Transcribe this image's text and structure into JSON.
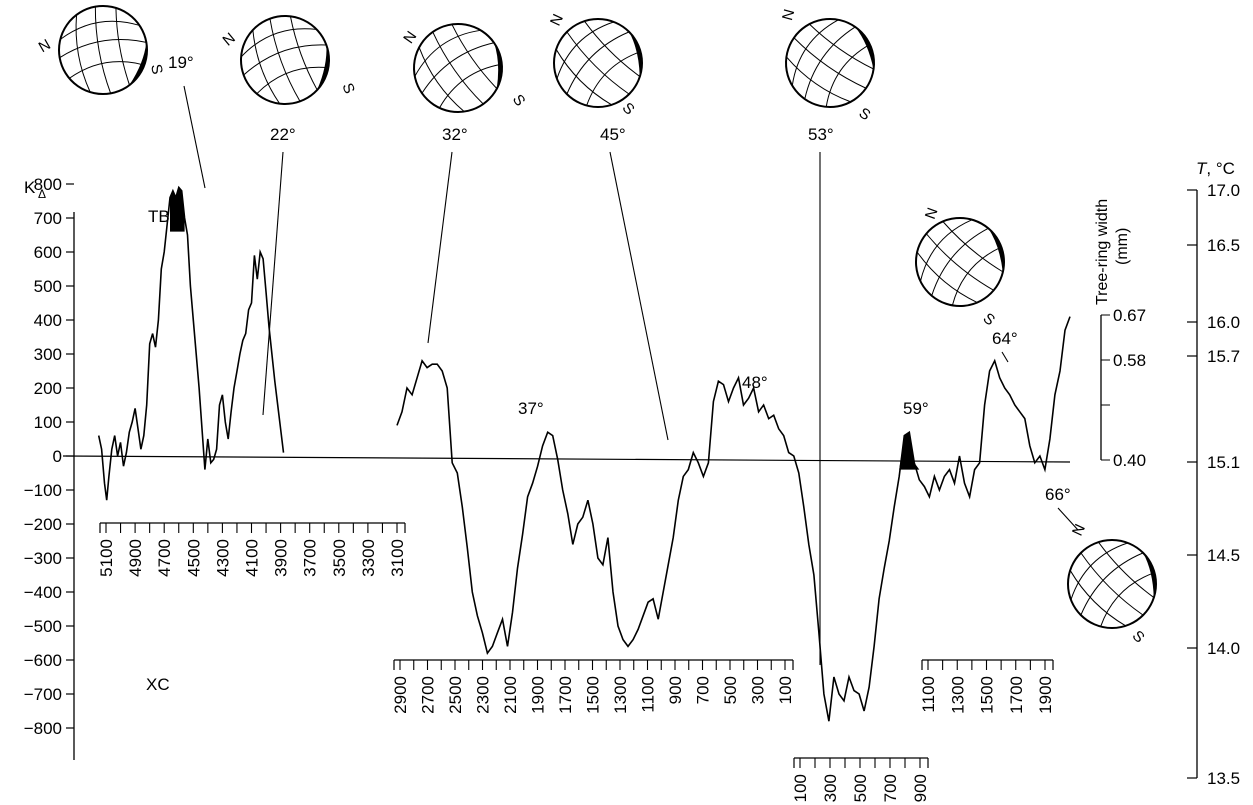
{
  "chart_data": {
    "type": "line",
    "axes": {
      "left": {
        "label_main": "K",
        "label_sub": "Δ",
        "ticks": [
          "800",
          "700",
          "600",
          "500",
          "400",
          "300",
          "200",
          "100",
          "0",
          "−100",
          "−200",
          "−300",
          "−400",
          "−500",
          "−600",
          "−700",
          "−800"
        ],
        "range": [
          -800,
          800
        ]
      },
      "tree_ring": {
        "label_line1": "Tree-ring width",
        "label_line2": "(mm)",
        "ticks": [
          "0.67",
          "0.58",
          "0.40"
        ]
      },
      "temperature": {
        "label_var": "T",
        "label_unit": ", °C",
        "ticks": [
          "17.0",
          "16.5",
          "16.0",
          "15.7",
          "15.1",
          "14.5",
          "14.0",
          "13.5"
        ]
      }
    },
    "region_labels": {
      "upper": "TB",
      "lower": "XC"
    },
    "time_axes": [
      {
        "id": "bc-upper",
        "ticks": [
          "5100",
          "4900",
          "4700",
          "4500",
          "4300",
          "4100",
          "3900",
          "3700",
          "3500",
          "3300",
          "3100"
        ]
      },
      {
        "id": "bc-lower",
        "ticks": [
          "2900",
          "2700",
          "2500",
          "2300",
          "2100",
          "1900",
          "1700",
          "1500",
          "1300",
          "1100",
          "900",
          "700",
          "500",
          "300",
          "100"
        ]
      },
      {
        "id": "ad-early",
        "ticks": [
          "100",
          "300",
          "500",
          "700",
          "900"
        ]
      },
      {
        "id": "ad-late",
        "ticks": [
          "1100",
          "1300",
          "1500",
          "1700",
          "1900"
        ]
      }
    ],
    "series": [
      {
        "values": [
          [
            5150,
            60
          ],
          [
            5130,
            20
          ],
          [
            5110,
            -80
          ],
          [
            5095,
            -130
          ],
          [
            5080,
            -60
          ],
          [
            5060,
            20
          ],
          [
            5040,
            60
          ],
          [
            5020,
            0
          ],
          [
            5000,
            40
          ],
          [
            4980,
            -30
          ],
          [
            4960,
            10
          ],
          [
            4940,
            70
          ],
          [
            4920,
            100
          ],
          [
            4900,
            140
          ],
          [
            4880,
            80
          ],
          [
            4860,
            20
          ],
          [
            4840,
            60
          ],
          [
            4820,
            150
          ],
          [
            4800,
            330
          ],
          [
            4780,
            360
          ],
          [
            4760,
            320
          ],
          [
            4740,
            400
          ],
          [
            4720,
            550
          ],
          [
            4700,
            600
          ],
          [
            4680,
            680
          ],
          [
            4660,
            760
          ],
          [
            4640,
            780
          ],
          [
            4620,
            760
          ],
          [
            4600,
            790
          ],
          [
            4580,
            780
          ],
          [
            4560,
            700
          ],
          [
            4540,
            650
          ],
          [
            4520,
            500
          ],
          [
            4500,
            400
          ],
          [
            4480,
            300
          ],
          [
            4460,
            200
          ],
          [
            4440,
            80
          ],
          [
            4420,
            -40
          ],
          [
            4400,
            50
          ],
          [
            4380,
            -20
          ],
          [
            4360,
            -10
          ],
          [
            4340,
            20
          ],
          [
            4320,
            150
          ],
          [
            4300,
            180
          ],
          [
            4280,
            100
          ],
          [
            4260,
            50
          ],
          [
            4240,
            130
          ],
          [
            4220,
            200
          ],
          [
            4200,
            250
          ],
          [
            4180,
            300
          ],
          [
            4160,
            340
          ],
          [
            4140,
            360
          ],
          [
            4120,
            430
          ],
          [
            4100,
            450
          ],
          [
            4080,
            590
          ],
          [
            4060,
            520
          ],
          [
            4040,
            600
          ],
          [
            4020,
            580
          ],
          [
            4000,
            480
          ],
          [
            3980,
            380
          ],
          [
            3960,
            300
          ],
          [
            3940,
            220
          ],
          [
            3920,
            150
          ],
          [
            3900,
            80
          ],
          [
            3880,
            10
          ]
        ]
      },
      {
        "values": [
          [
            3900,
            90
          ],
          [
            3880,
            130
          ],
          [
            3860,
            200
          ],
          [
            3840,
            180
          ],
          [
            3820,
            230
          ],
          [
            3800,
            280
          ],
          [
            3780,
            260
          ],
          [
            3760,
            270
          ],
          [
            3740,
            270
          ],
          [
            3720,
            250
          ],
          [
            3700,
            200
          ],
          [
            3680,
            -20
          ],
          [
            3660,
            -50
          ],
          [
            3640,
            -150
          ],
          [
            3620,
            -270
          ],
          [
            3600,
            -400
          ],
          [
            3580,
            -470
          ],
          [
            3560,
            -520
          ],
          [
            3540,
            -580
          ],
          [
            3520,
            -560
          ],
          [
            3500,
            -520
          ],
          [
            3480,
            -480
          ],
          [
            3460,
            -560
          ],
          [
            3440,
            -460
          ],
          [
            3420,
            -330
          ],
          [
            3400,
            -230
          ],
          [
            3380,
            -120
          ],
          [
            3360,
            -80
          ],
          [
            3340,
            -30
          ],
          [
            3320,
            30
          ],
          [
            3300,
            70
          ],
          [
            3280,
            60
          ],
          [
            3260,
            -10
          ],
          [
            3240,
            -100
          ],
          [
            3220,
            -170
          ],
          [
            3200,
            -260
          ],
          [
            3180,
            -200
          ],
          [
            3160,
            -180
          ],
          [
            3140,
            -130
          ],
          [
            3120,
            -200
          ],
          [
            3100,
            -300
          ],
          [
            3080,
            -320
          ],
          [
            3060,
            -240
          ],
          [
            3040,
            -400
          ],
          [
            3020,
            -500
          ],
          [
            3000,
            -540
          ],
          [
            2980,
            -560
          ],
          [
            2960,
            -540
          ],
          [
            2940,
            -510
          ],
          [
            2920,
            -470
          ],
          [
            2900,
            -430
          ],
          [
            2880,
            -420
          ],
          [
            2860,
            -480
          ],
          [
            2840,
            -400
          ],
          [
            2820,
            -320
          ],
          [
            2800,
            -240
          ],
          [
            2780,
            -130
          ],
          [
            2760,
            -60
          ],
          [
            2740,
            -40
          ],
          [
            2720,
            10
          ],
          [
            2700,
            -20
          ],
          [
            2680,
            -60
          ],
          [
            2660,
            -20
          ],
          [
            2640,
            160
          ],
          [
            2620,
            220
          ],
          [
            2600,
            210
          ],
          [
            2580,
            160
          ],
          [
            2560,
            200
          ],
          [
            2540,
            230
          ],
          [
            2520,
            150
          ],
          [
            2500,
            170
          ],
          [
            2480,
            200
          ],
          [
            2460,
            130
          ],
          [
            2440,
            150
          ],
          [
            2420,
            110
          ],
          [
            2400,
            120
          ],
          [
            2380,
            80
          ],
          [
            2360,
            60
          ],
          [
            2340,
            10
          ],
          [
            2320,
            0
          ],
          [
            2300,
            -50
          ],
          [
            2280,
            -150
          ],
          [
            2260,
            -260
          ],
          [
            2240,
            -350
          ],
          [
            2220,
            -520
          ],
          [
            2200,
            -700
          ],
          [
            2180,
            -780
          ],
          [
            2160,
            -650
          ],
          [
            2140,
            -700
          ],
          [
            2120,
            -720
          ],
          [
            2100,
            -650
          ],
          [
            2080,
            -690
          ],
          [
            2060,
            -700
          ],
          [
            2040,
            -750
          ],
          [
            2020,
            -680
          ],
          [
            2000,
            -560
          ],
          [
            1980,
            -420
          ],
          [
            1960,
            -330
          ],
          [
            1940,
            -250
          ],
          [
            1920,
            -150
          ],
          [
            1900,
            -60
          ],
          [
            1880,
            60
          ],
          [
            1860,
            70
          ],
          [
            1840,
            -20
          ],
          [
            1820,
            -70
          ],
          [
            1800,
            -90
          ],
          [
            1780,
            -120
          ],
          [
            1760,
            -60
          ],
          [
            1740,
            -100
          ],
          [
            1720,
            -60
          ],
          [
            1700,
            -40
          ],
          [
            1680,
            -80
          ],
          [
            1660,
            0
          ],
          [
            1640,
            -80
          ],
          [
            1620,
            -120
          ],
          [
            1600,
            -40
          ],
          [
            1580,
            -20
          ],
          [
            1560,
            150
          ],
          [
            1540,
            250
          ],
          [
            1520,
            280
          ],
          [
            1500,
            230
          ],
          [
            1480,
            200
          ],
          [
            1460,
            180
          ],
          [
            1440,
            150
          ],
          [
            1420,
            130
          ],
          [
            1400,
            110
          ],
          [
            1380,
            30
          ],
          [
            1360,
            -20
          ],
          [
            1340,
            0
          ],
          [
            1320,
            -40
          ],
          [
            1300,
            50
          ],
          [
            1280,
            180
          ],
          [
            1260,
            250
          ],
          [
            1240,
            370
          ],
          [
            1220,
            410
          ]
        ]
      }
    ],
    "annotations": [
      {
        "label": "19°"
      },
      {
        "label": "22°"
      },
      {
        "label": "32°"
      },
      {
        "label": "45°"
      },
      {
        "label": "53°"
      },
      {
        "label": "37°"
      },
      {
        "label": "48°"
      },
      {
        "label": "59°"
      },
      {
        "label": "64°"
      },
      {
        "label": "66°"
      }
    ],
    "stereonet_labels": {
      "north": "N",
      "south": "S"
    }
  }
}
